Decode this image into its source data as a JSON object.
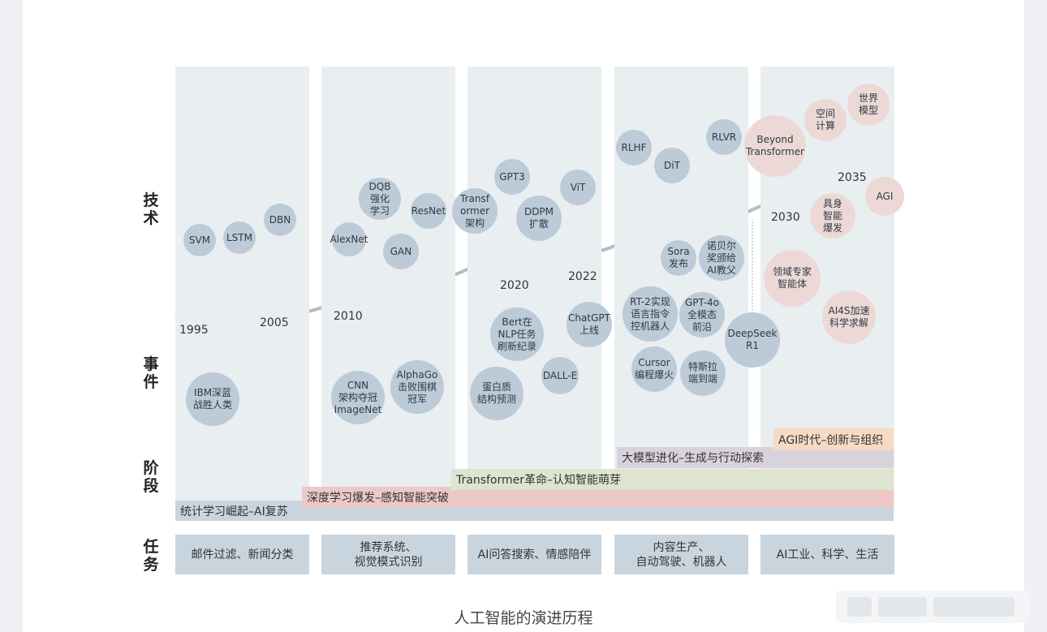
{
  "row_labels": {
    "tech": "技\n术",
    "event": "事\n件",
    "stage": "阶\n段",
    "task": "任\n务"
  },
  "tasks": [
    "邮件过滤、新闻分类",
    "推荐系统、\n视觉模式识别",
    "AI问答搜索、情感陪伴",
    "内容生产、\n自动驾驶、机器人",
    "AI工业、科学、生活"
  ],
  "stages": [
    {
      "label": "统计学习崛起–AI复苏",
      "color": "#c9d5de"
    },
    {
      "label": "深度学习爆发–感知智能突破",
      "color": "#ecc9c6"
    },
    {
      "label": "Transformer革命–认知智能萌芽",
      "color": "#dde4cf"
    },
    {
      "label": "大模型进化–生成与行动探索",
      "color": "#d8d2dc"
    },
    {
      "label": "AGI时代–创新与组织",
      "color": "#f7d9c4"
    }
  ],
  "years": [
    "1995",
    "2005",
    "2010",
    "2020",
    "2022",
    "2030",
    "2035"
  ],
  "tech_nodes": [
    {
      "label": "SVM",
      "style": "blue"
    },
    {
      "label": "LSTM",
      "style": "blue"
    },
    {
      "label": "DBN",
      "style": "blue"
    },
    {
      "label": "AlexNet",
      "style": "blue"
    },
    {
      "label": "DQB\n强化\n学习",
      "style": "blue"
    },
    {
      "label": "GAN",
      "style": "blue"
    },
    {
      "label": "ResNet",
      "style": "blue"
    },
    {
      "label": "Transf\normer\n架构",
      "style": "blue"
    },
    {
      "label": "GPT3",
      "style": "blue"
    },
    {
      "label": "DDPM\n扩散",
      "style": "blue"
    },
    {
      "label": "ViT",
      "style": "blue"
    },
    {
      "label": "RLHF",
      "style": "blue"
    },
    {
      "label": "DiT",
      "style": "blue"
    },
    {
      "label": "RLVR",
      "style": "blue"
    },
    {
      "label": "Sora\n发布",
      "style": "blue"
    },
    {
      "label": "诺贝尔\n奖颁给\nAI教父",
      "style": "blue"
    },
    {
      "label": "Beyond\nTransformer",
      "style": "pink"
    },
    {
      "label": "空间\n计算",
      "style": "pink"
    },
    {
      "label": "世界\n模型",
      "style": "pink"
    },
    {
      "label": "具身\n智能\n爆发",
      "style": "pink"
    },
    {
      "label": "AGI",
      "style": "pink"
    }
  ],
  "event_nodes": [
    {
      "label": "IBM深蓝\n战胜人类",
      "style": "blue"
    },
    {
      "label": "CNN\n架构夺冠\nImageNet",
      "style": "blue"
    },
    {
      "label": "AlphaGo\n击败围棋\n冠军",
      "style": "blue"
    },
    {
      "label": "Bert在\nNLP任务\n刷新纪录",
      "style": "blue"
    },
    {
      "label": "蛋白质\n结构预测",
      "style": "blue"
    },
    {
      "label": "DALL-E",
      "style": "blue"
    },
    {
      "label": "ChatGPT\n上线",
      "style": "blue"
    },
    {
      "label": "RT-2实现\n语言指令\n控机器人",
      "style": "blue"
    },
    {
      "label": "GPT-4o\n全模态\n前沿",
      "style": "blue"
    },
    {
      "label": "Cursor\n编程爆火",
      "style": "blue"
    },
    {
      "label": "特斯拉\n端到端",
      "style": "blue"
    },
    {
      "label": "DeepSeek\nR1",
      "style": "blue"
    },
    {
      "label": "领域专家\n智能体",
      "style": "pink"
    },
    {
      "label": "AI4S加速\n科学求解",
      "style": "pink"
    }
  ],
  "caption": "人工智能的演进历程"
}
